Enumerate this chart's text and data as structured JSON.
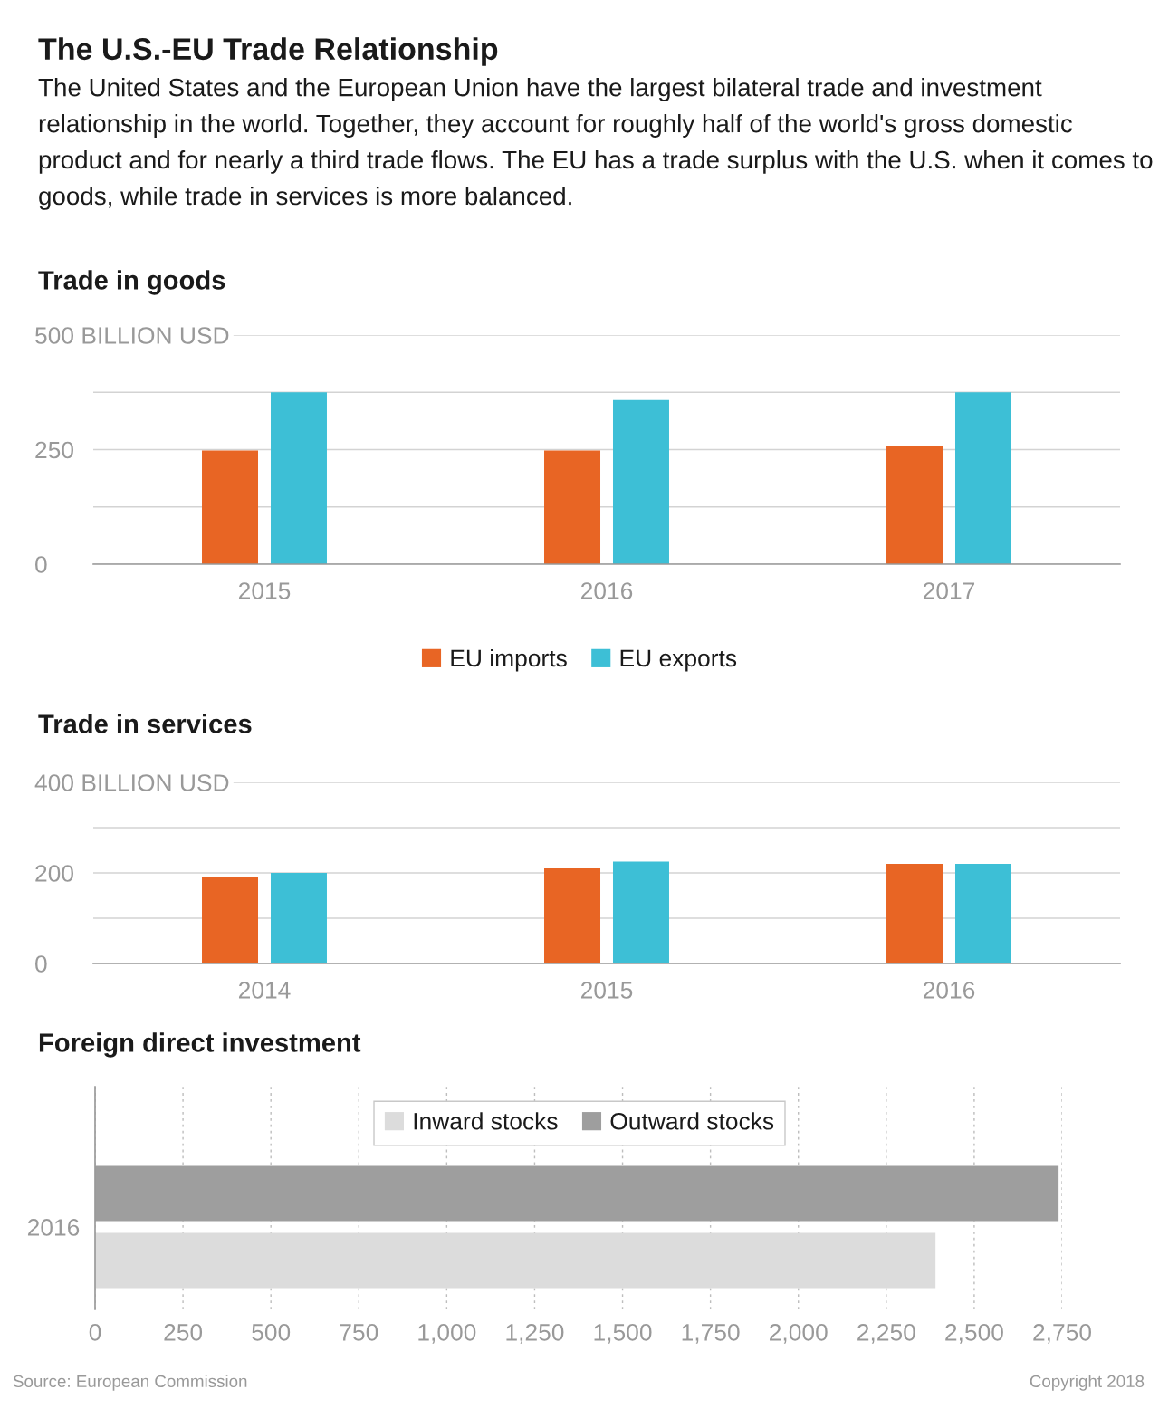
{
  "chart_data": [
    {
      "type": "other",
      "title": "The U.S.-EU Trade Relationship",
      "subtitle": "The United States and the European Union have the largest bilateral trade and investment relationship in the world. Together, they account for roughly half of the world's gross domestic product and for nearly a third trade flows. The EU has a trade surplus with the U.S. when it comes to goods, while trade in services is more balanced.",
      "annotations": [
        "Source: European Commission",
        "Copyright 2018"
      ]
    },
    {
      "type": "bar",
      "title": "Trade in goods",
      "categories": [
        "2015",
        "2016",
        "2017"
      ],
      "series": [
        {
          "name": "EU imports",
          "color": "#e86524",
          "values": [
            248,
            248,
            257
          ]
        },
        {
          "name": "EU exports",
          "color": "#3dbfd6",
          "values": [
            375,
            358,
            375
          ]
        }
      ],
      "ylim": [
        0,
        500
      ],
      "yticks": [
        0,
        {
          "value": 125,
          "label": null
        },
        250,
        {
          "value": 375,
          "label": null
        },
        {
          "value": 500,
          "label": "500 BILLION USD"
        }
      ],
      "grid": "y",
      "legend": "bottom"
    },
    {
      "type": "bar",
      "title": "Trade in services",
      "categories": [
        "2014",
        "2015",
        "2016"
      ],
      "series": [
        {
          "color": "#e86524",
          "values": [
            190,
            210,
            220
          ]
        },
        {
          "color": "#3dbfd6",
          "values": [
            200,
            225,
            220
          ]
        }
      ],
      "ylim": [
        0,
        400
      ],
      "yticks": [
        0,
        {
          "value": 100,
          "label": null
        },
        200,
        {
          "value": 300,
          "label": null
        },
        {
          "value": 400,
          "label": "400 BILLION USD"
        }
      ],
      "grid": "y"
    },
    {
      "type": "bar",
      "title": "Foreign direct investment",
      "orientation": "horizontal",
      "categories": [
        "2016"
      ],
      "series": [
        {
          "name": "Inward stocks",
          "color": "#dcdcdc",
          "values": [
            2390
          ]
        },
        {
          "name": "Outward stocks",
          "color": "#9e9e9e",
          "values": [
            2740
          ]
        }
      ],
      "xlim": [
        0,
        2750
      ],
      "xticks": [
        0,
        250,
        500,
        750,
        {
          "value": 1000,
          "label": "1,000"
        },
        {
          "value": 1250,
          "label": "1,250"
        },
        {
          "value": 1500,
          "label": "1,500"
        },
        {
          "value": 1750,
          "label": "1,750"
        },
        {
          "value": 2000,
          "label": "2,000"
        },
        {
          "value": 2250,
          "label": "2,250"
        },
        {
          "value": 2500,
          "label": "2,500"
        },
        {
          "value": 2750,
          "label": "2,750"
        }
      ],
      "grid": "x",
      "legend": "top"
    }
  ]
}
